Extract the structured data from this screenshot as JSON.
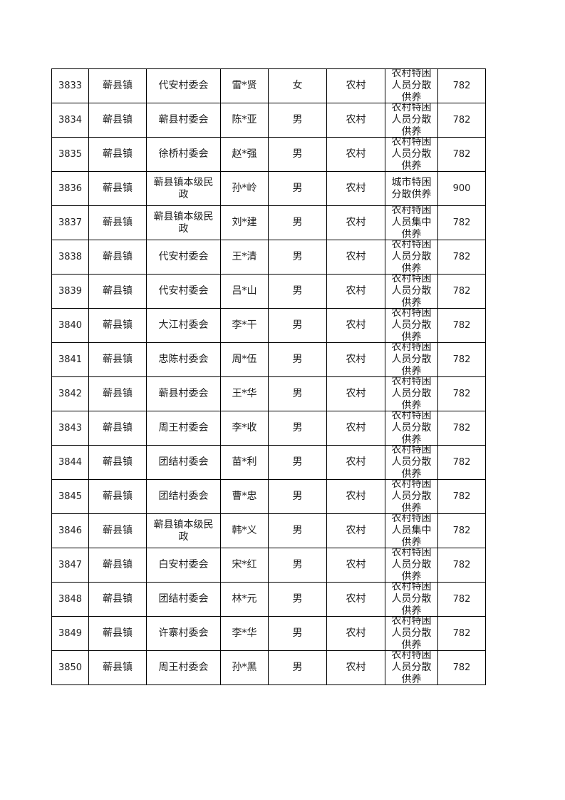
{
  "table": {
    "rows": [
      [
        "3833",
        "蕲县镇",
        "代安村委会",
        "雷*贤",
        "女",
        "农村",
        "农村特困人员分散供养",
        "782"
      ],
      [
        "3834",
        "蕲县镇",
        "蕲县村委会",
        "陈*亚",
        "男",
        "农村",
        "农村特困人员分散供养",
        "782"
      ],
      [
        "3835",
        "蕲县镇",
        "徐桥村委会",
        "赵*强",
        "男",
        "农村",
        "农村特困人员分散供养",
        "782"
      ],
      [
        "3836",
        "蕲县镇",
        "蕲县镇本级民政",
        "孙*岭",
        "男",
        "农村",
        "城市特困分散供养",
        "900"
      ],
      [
        "3837",
        "蕲县镇",
        "蕲县镇本级民政",
        "刘*建",
        "男",
        "农村",
        "农村特困人员集中供养",
        "782"
      ],
      [
        "3838",
        "蕲县镇",
        "代安村委会",
        "王*清",
        "男",
        "农村",
        "农村特困人员分散供养",
        "782"
      ],
      [
        "3839",
        "蕲县镇",
        "代安村委会",
        "吕*山",
        "男",
        "农村",
        "农村特困人员分散供养",
        "782"
      ],
      [
        "3840",
        "蕲县镇",
        "大江村委会",
        "李*干",
        "男",
        "农村",
        "农村特困人员分散供养",
        "782"
      ],
      [
        "3841",
        "蕲县镇",
        "忠陈村委会",
        "周*伍",
        "男",
        "农村",
        "农村特困人员分散供养",
        "782"
      ],
      [
        "3842",
        "蕲县镇",
        "蕲县村委会",
        "王*华",
        "男",
        "农村",
        "农村特困人员分散供养",
        "782"
      ],
      [
        "3843",
        "蕲县镇",
        "周王村委会",
        "李*收",
        "男",
        "农村",
        "农村特困人员分散供养",
        "782"
      ],
      [
        "3844",
        "蕲县镇",
        "团结村委会",
        "苗*利",
        "男",
        "农村",
        "农村特困人员分散供养",
        "782"
      ],
      [
        "3845",
        "蕲县镇",
        "团结村委会",
        "曹*忠",
        "男",
        "农村",
        "农村特困人员分散供养",
        "782"
      ],
      [
        "3846",
        "蕲县镇",
        "蕲县镇本级民政",
        "韩*义",
        "男",
        "农村",
        "农村特困人员集中供养",
        "782"
      ],
      [
        "3847",
        "蕲县镇",
        "白安村委会",
        "宋*红",
        "男",
        "农村",
        "农村特困人员分散供养",
        "782"
      ],
      [
        "3848",
        "蕲县镇",
        "团结村委会",
        "林*元",
        "男",
        "农村",
        "农村特困人员分散供养",
        "782"
      ],
      [
        "3849",
        "蕲县镇",
        "许寨村委会",
        "李*华",
        "男",
        "农村",
        "农村特困人员分散供养",
        "782"
      ],
      [
        "3850",
        "蕲县镇",
        "周王村委会",
        "孙*黑",
        "男",
        "农村",
        "农村特困人员分散供养",
        "782"
      ]
    ]
  }
}
